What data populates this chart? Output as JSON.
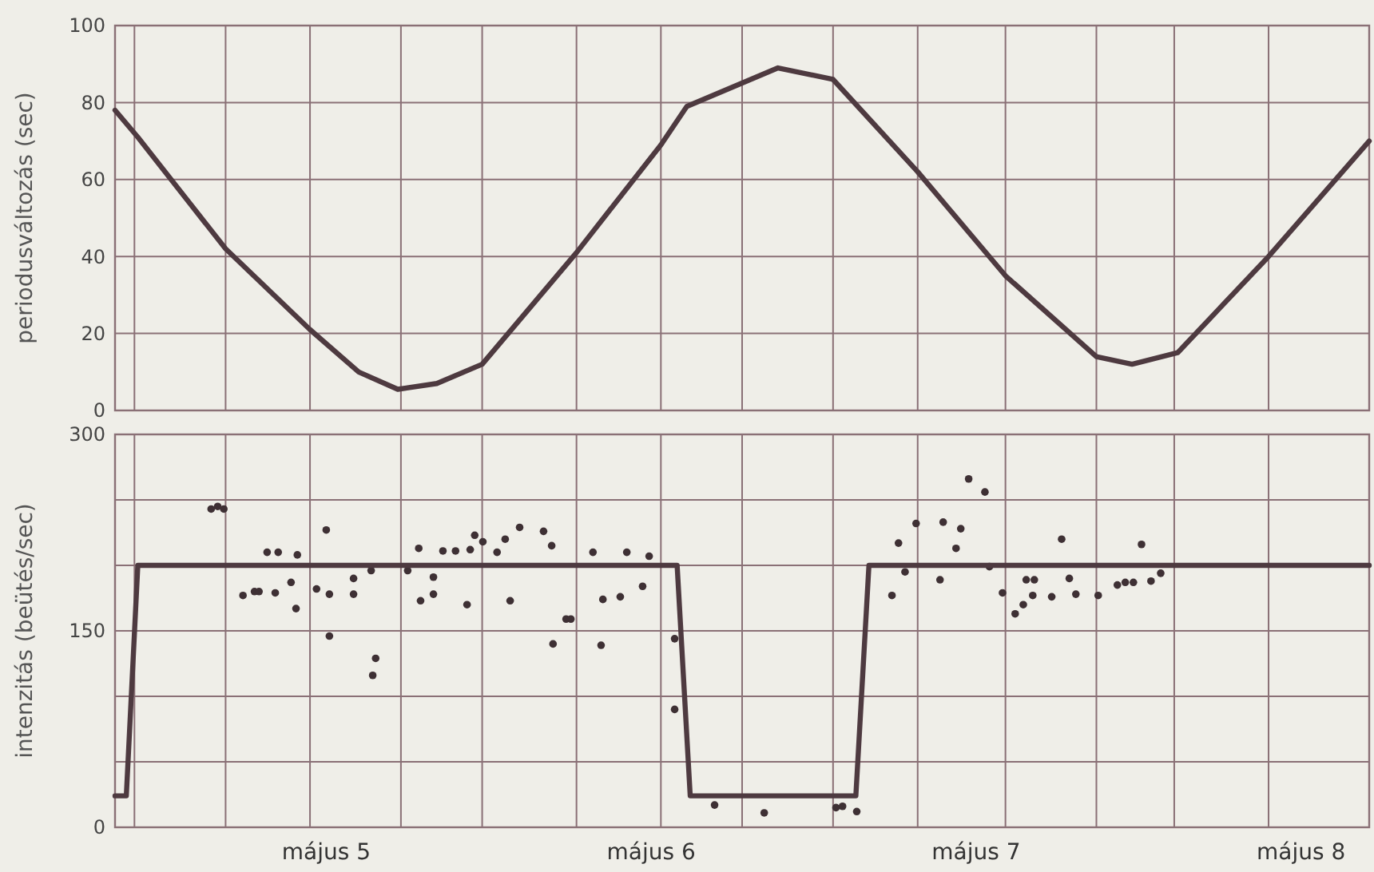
{
  "chart_data": [
    {
      "type": "line",
      "ylabel": "periodusváltozás (sec)",
      "tick_labels": "y",
      "grid": true,
      "xlim": [
        "--05-04T08:24",
        "--05-08T05:02"
      ],
      "xticks": [
        {
          "value": "--05-04T09:50",
          "label": null
        },
        {
          "value": "--05-04T16:34",
          "label": null
        },
        {
          "value": "--05-04T22:48",
          "label": null
        },
        {
          "value": "--05-05T05:31",
          "label": null
        },
        {
          "value": "--05-05T11:31",
          "label": null
        },
        {
          "value": "--05-05T18:29",
          "label": null
        },
        {
          "value": "--05-06T00:43",
          "label": null
        },
        {
          "value": "--05-06T06:43",
          "label": null
        },
        {
          "value": "--05-06T13:26",
          "label": null
        },
        {
          "value": "--05-06T19:41",
          "label": null
        },
        {
          "value": "--05-07T02:10",
          "label": null
        },
        {
          "value": "--05-07T08:53",
          "label": null
        },
        {
          "value": "--05-07T14:38",
          "label": null
        },
        {
          "value": "--05-07T21:36",
          "label": null
        }
      ],
      "ylim": [
        0,
        100
      ],
      "yticks": [
        0,
        20,
        40,
        60,
        80,
        100
      ],
      "x": [
        "--05-04T08:24",
        "--05-04T10:05",
        "--05-04T16:34",
        "--05-04T22:48",
        "--05-05T02:24",
        "--05-05T05:17",
        "--05-05T08:10",
        "--05-05T11:31",
        "--05-05T18:29",
        "--05-06T00:43",
        "--05-06T02:38",
        "--05-06T09:22",
        "--05-06T13:26",
        "--05-06T19:41",
        "--05-07T02:10",
        "--05-07T08:53",
        "--05-07T11:31",
        "--05-07T14:53",
        "--05-07T21:36",
        "--05-08T05:02"
      ],
      "values": [
        78,
        71,
        42,
        21,
        10,
        5.5,
        7,
        12,
        41,
        69,
        79,
        89,
        86,
        62,
        35,
        14,
        12,
        15,
        40,
        70
      ],
      "color": "#4e3a40",
      "line_style": "solid"
    },
    {
      "type": "scatter",
      "ylabel": "intenzitás (beütés/sec)",
      "grid": true,
      "xlim": [
        "--05-04T08:24",
        "--05-08T05:02"
      ],
      "xticks": [
        {
          "value": "--05-04T09:50",
          "label": null
        },
        {
          "value": "--05-04T16:34",
          "label": null
        },
        {
          "value": "--05-04T22:48",
          "label": null
        },
        {
          "value": "--05-05",
          "label": "május 5"
        },
        {
          "value": "--05-05T05:31",
          "label": null
        },
        {
          "value": "--05-05T11:31",
          "label": null
        },
        {
          "value": "--05-05T18:29",
          "label": null
        },
        {
          "value": "--05-06",
          "label": "május 6"
        },
        {
          "value": "--05-06T00:43",
          "label": null
        },
        {
          "value": "--05-06T06:43",
          "label": null
        },
        {
          "value": "--05-06T13:26",
          "label": null
        },
        {
          "value": "--05-06T19:41",
          "label": null
        },
        {
          "value": "--05-07",
          "label": "május 7"
        },
        {
          "value": "--05-07T02:10",
          "label": null
        },
        {
          "value": "--05-07T08:53",
          "label": null
        },
        {
          "value": "--05-07T14:38",
          "label": null
        },
        {
          "value": "--05-07T21:36",
          "label": null
        },
        {
          "value": "--05-08",
          "label": "május 8"
        }
      ],
      "ylim": [
        0,
        300
      ],
      "yticks": [
        0,
        {
          "value": 50,
          "label": null
        },
        {
          "value": 100,
          "label": null
        },
        150,
        {
          "value": 200,
          "label": null
        },
        {
          "value": 250,
          "label": null
        },
        300
      ],
      "series": [
        {
          "type": "scatter",
          "marker": "circle",
          "color": "#3e3034",
          "x": [
            "--05-04T15:30",
            "--05-04T15:59",
            "--05-04T16:26",
            "--05-04T17:51",
            "--05-04T18:42",
            "--05-04T19:02",
            "--05-04T20:14",
            "--05-04T19:38",
            "--05-04T20:27",
            "--05-04T21:52",
            "--05-04T21:24",
            "--05-04T21:46",
            "--05-04T23:17",
            "--05-05T00:00",
            "--05-05T00:14",
            "--05-05T00:14",
            "--05-05T02:01",
            "--05-05T02:01",
            "--05-05T03:19",
            "--05-05T03:39",
            "--05-05T03:26",
            "--05-05T06:01",
            "--05-05T06:50",
            "--05-05T06:58",
            "--05-05T07:55",
            "--05-05T07:55",
            "--05-05T08:37",
            "--05-05T09:33",
            "--05-05T10:24",
            "--05-05T10:38",
            "--05-05T10:58",
            "--05-05T11:34",
            "--05-05T12:37",
            "--05-05T13:13",
            "--05-05T13:35",
            "--05-05T14:17",
            "--05-05T16:03",
            "--05-05T16:39",
            "--05-05T16:45",
            "--05-05T17:43",
            "--05-05T18:04",
            "--05-05T19:42",
            "--05-05T20:26",
            "--05-05T20:18",
            "--05-05T21:43",
            "--05-05T22:12",
            "--05-05T23:22",
            "--05-05T23:51",
            "--05-06T01:44",
            "--05-06T01:44",
            "--05-06T04:41",
            "--05-06T08:21",
            "--05-06T13:39",
            "--05-06T14:08",
            "--05-06T15:11",
            "--05-06T18:16",
            "--05-06T18:45",
            "--05-06T17:47",
            "--05-06T19:34",
            "--05-06T21:20",
            "--05-06T21:34",
            "--05-06T22:52",
            "--05-06T22:31",
            "--05-06T23:27",
            "--05-07T00:39",
            "--05-07T00:59",
            "--05-07T01:57",
            "--05-07T02:53",
            "--05-07T03:29",
            "--05-07T03:42",
            "--05-07T04:18",
            "--05-07T04:11",
            "--05-07T05:35",
            "--05-07T06:19",
            "--05-07T06:53",
            "--05-07T07:22",
            "--05-07T09:01",
            "--05-07T10:26",
            "--05-07T11:01",
            "--05-07T11:37",
            "--05-07T12:13",
            "--05-07T12:55",
            "--05-07T13:38"
          ],
          "values": [
            243,
            245,
            243,
            177,
            180,
            180,
            179,
            210,
            210,
            208,
            187,
            167,
            182,
            227,
            178,
            146,
            190,
            178,
            196,
            129,
            116,
            196,
            213,
            173,
            191,
            178,
            211,
            211,
            170,
            212,
            223,
            218,
            210,
            220,
            173,
            229,
            226,
            215,
            140,
            159,
            159,
            210,
            174,
            139,
            176,
            210,
            184,
            207,
            90,
            144,
            17,
            11,
            15,
            16,
            12,
            217,
            195,
            177,
            232,
            189,
            233,
            228,
            213,
            266,
            256,
            199,
            179,
            163,
            170,
            189,
            189,
            177,
            176,
            220,
            190,
            178,
            177,
            185,
            187,
            187,
            216,
            188,
            194
          ]
        },
        {
          "type": "line",
          "color": "#4e3a40",
          "x": [
            "--05-04T08:24",
            "--05-04T09:14",
            "--05-04T10:05",
            "--05-06T01:55",
            "--05-06T02:53",
            "--05-06T15:07",
            "--05-06T16:05",
            "--05-08T05:02"
          ],
          "values": [
            24,
            24,
            200,
            200,
            24,
            24,
            200,
            200
          ]
        }
      ]
    }
  ]
}
